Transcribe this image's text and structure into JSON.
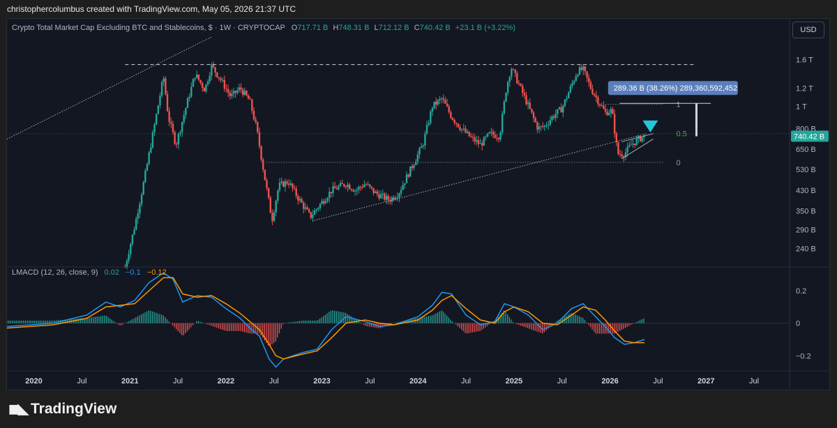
{
  "credit": "christophercolumbus created with TradingView.com, May 05, 2026 21:37 UTC",
  "brand": "TradingView",
  "currency_button": "USD",
  "legend": {
    "title": "Crypto Total Market Cap Excluding BTC and Stablecoins, $ · 1W · CRYPTOCAP",
    "open_label": "O",
    "open": "717.71 B",
    "high_label": "H",
    "high": "748.31 B",
    "low_label": "L",
    "low": "712.12 B",
    "close_label": "C",
    "close": "740.42 B",
    "change": "+23.1 B (+3.22%)"
  },
  "macd_legend": {
    "label": "LMACD (12, 26, close, 9)",
    "hist": "0.02",
    "macd": "−0.1",
    "signal": "−0.12"
  },
  "colors": {
    "up": "#26a69a",
    "down": "#ef5350",
    "macd": "#2196f3",
    "signal": "#ff9800",
    "fib_mid": "#4caf50",
    "bg": "#131722"
  },
  "chart_data": [
    {
      "type": "candlestick",
      "scale": "log",
      "title": "Crypto Total Market Cap Excluding BTC and Stablecoins, $ · 1W · CRYPTOCAP",
      "last_price_label": "740.42 B",
      "y_ticks": [
        "1.6 T",
        "1.2 T",
        "1 T",
        "800 B",
        "650 B",
        "530 B",
        "430 B",
        "350 B",
        "290 B",
        "240 B"
      ],
      "y_tick_values": [
        1600,
        1200,
        1000,
        800,
        650,
        530,
        430,
        350,
        290,
        240
      ],
      "ylim": [
        205,
        1950
      ],
      "x_ticks": [
        "2020",
        "Jul",
        "2021",
        "Jul",
        "2022",
        "Jul",
        "2023",
        "Jul",
        "2024",
        "Jul",
        "2025",
        "Jul",
        "2026",
        "Jul",
        "2027",
        "Jul"
      ],
      "x_tick_years": [
        2020.0,
        2020.5,
        2021.0,
        2021.5,
        2022.0,
        2022.5,
        2023.0,
        2023.5,
        2024.0,
        2024.5,
        2025.0,
        2025.5,
        2026.0,
        2026.5,
        2027.0,
        2027.5
      ],
      "xlim": [
        2019.72,
        2027.87
      ],
      "price_path": [
        [
          2020.95,
          200
        ],
        [
          2021.05,
          300
        ],
        [
          2021.15,
          480
        ],
        [
          2021.25,
          800
        ],
        [
          2021.35,
          1350
        ],
        [
          2021.4,
          900
        ],
        [
          2021.48,
          680
        ],
        [
          2021.6,
          1050
        ],
        [
          2021.68,
          1380
        ],
        [
          2021.78,
          1180
        ],
        [
          2021.85,
          1500
        ],
        [
          2021.95,
          1300
        ],
        [
          2022.05,
          1100
        ],
        [
          2022.15,
          1200
        ],
        [
          2022.25,
          1050
        ],
        [
          2022.32,
          800
        ],
        [
          2022.4,
          500
        ],
        [
          2022.48,
          320
        ],
        [
          2022.55,
          450
        ],
        [
          2022.65,
          470
        ],
        [
          2022.75,
          400
        ],
        [
          2022.88,
          330
        ],
        [
          2022.95,
          360
        ],
        [
          2023.1,
          430
        ],
        [
          2023.25,
          460
        ],
        [
          2023.35,
          430
        ],
        [
          2023.45,
          460
        ],
        [
          2023.55,
          420
        ],
        [
          2023.7,
          390
        ],
        [
          2023.8,
          420
        ],
        [
          2023.95,
          560
        ],
        [
          2024.05,
          680
        ],
        [
          2024.15,
          1000
        ],
        [
          2024.25,
          1080
        ],
        [
          2024.35,
          900
        ],
        [
          2024.45,
          800
        ],
        [
          2024.55,
          730
        ],
        [
          2024.65,
          680
        ],
        [
          2024.75,
          760
        ],
        [
          2024.85,
          740
        ],
        [
          2024.92,
          1200
        ],
        [
          2024.97,
          1480
        ],
        [
          2025.05,
          1250
        ],
        [
          2025.15,
          1000
        ],
        [
          2025.25,
          800
        ],
        [
          2025.32,
          820
        ],
        [
          2025.4,
          900
        ],
        [
          2025.5,
          980
        ],
        [
          2025.58,
          1180
        ],
        [
          2025.66,
          1420
        ],
        [
          2025.72,
          1450
        ],
        [
          2025.8,
          1200
        ],
        [
          2025.88,
          1050
        ],
        [
          2025.95,
          940
        ],
        [
          2026.02,
          960
        ],
        [
          2026.08,
          620
        ],
        [
          2026.15,
          620
        ],
        [
          2026.22,
          680
        ],
        [
          2026.3,
          720
        ],
        [
          2026.36,
          741
        ]
      ],
      "annotations": {
        "top_dashed_level": 1520,
        "fib_1_value": 1020,
        "fib_1_label": "1",
        "fib_05_value": 760,
        "fib_05_label": "0.5",
        "fib_0_value": 570,
        "fib_0_label": "0",
        "measure_label": "289.36 B (38.26%) 289,360,592,452",
        "measure_from": 740,
        "measure_to": 1030
      }
    },
    {
      "type": "line",
      "title": "LMACD (12, 26, close, 9)",
      "y_ticks": [
        "0.2",
        "0",
        "−0.2"
      ],
      "y_tick_values": [
        0.2,
        0,
        -0.2
      ],
      "ylim": [
        -0.28,
        0.32
      ],
      "series": [
        {
          "name": "LMACD",
          "color": "#2196f3",
          "points": [
            [
              2019.72,
              -0.02
            ],
            [
              2020.2,
              0.0
            ],
            [
              2020.55,
              0.05
            ],
            [
              2020.75,
              0.13
            ],
            [
              2020.9,
              0.1
            ],
            [
              2021.05,
              0.14
            ],
            [
              2021.2,
              0.25
            ],
            [
              2021.35,
              0.31
            ],
            [
              2021.45,
              0.27
            ],
            [
              2021.55,
              0.13
            ],
            [
              2021.7,
              0.17
            ],
            [
              2021.85,
              0.16
            ],
            [
              2022.0,
              0.09
            ],
            [
              2022.15,
              0.03
            ],
            [
              2022.25,
              -0.03
            ],
            [
              2022.35,
              -0.08
            ],
            [
              2022.45,
              -0.22
            ],
            [
              2022.52,
              -0.27
            ],
            [
              2022.6,
              -0.22
            ],
            [
              2022.8,
              -0.18
            ],
            [
              2022.95,
              -0.16
            ],
            [
              2023.1,
              -0.04
            ],
            [
              2023.25,
              0.04
            ],
            [
              2023.45,
              0.01
            ],
            [
              2023.6,
              -0.02
            ],
            [
              2023.75,
              -0.01
            ],
            [
              2024.0,
              0.04
            ],
            [
              2024.15,
              0.11
            ],
            [
              2024.25,
              0.19
            ],
            [
              2024.35,
              0.18
            ],
            [
              2024.5,
              0.05
            ],
            [
              2024.65,
              -0.01
            ],
            [
              2024.8,
              0.01
            ],
            [
              2024.9,
              0.12
            ],
            [
              2025.0,
              0.1
            ],
            [
              2025.15,
              0.05
            ],
            [
              2025.3,
              -0.04
            ],
            [
              2025.45,
              0.0
            ],
            [
              2025.6,
              0.09
            ],
            [
              2025.72,
              0.12
            ],
            [
              2025.85,
              0.04
            ],
            [
              2025.95,
              -0.02
            ],
            [
              2026.05,
              -0.09
            ],
            [
              2026.15,
              -0.13
            ],
            [
              2026.25,
              -0.12
            ],
            [
              2026.36,
              -0.1
            ]
          ]
        },
        {
          "name": "Signal",
          "color": "#ff9800",
          "points": [
            [
              2019.72,
              -0.03
            ],
            [
              2020.2,
              -0.01
            ],
            [
              2020.55,
              0.03
            ],
            [
              2020.75,
              0.1
            ],
            [
              2020.9,
              0.11
            ],
            [
              2021.05,
              0.12
            ],
            [
              2021.2,
              0.2
            ],
            [
              2021.35,
              0.28
            ],
            [
              2021.45,
              0.28
            ],
            [
              2021.55,
              0.18
            ],
            [
              2021.7,
              0.16
            ],
            [
              2021.85,
              0.17
            ],
            [
              2022.0,
              0.12
            ],
            [
              2022.15,
              0.06
            ],
            [
              2022.25,
              0.01
            ],
            [
              2022.35,
              -0.04
            ],
            [
              2022.45,
              -0.13
            ],
            [
              2022.52,
              -0.2
            ],
            [
              2022.6,
              -0.22
            ],
            [
              2022.8,
              -0.19
            ],
            [
              2022.95,
              -0.17
            ],
            [
              2023.1,
              -0.09
            ],
            [
              2023.25,
              0.0
            ],
            [
              2023.45,
              0.02
            ],
            [
              2023.6,
              0.0
            ],
            [
              2023.75,
              -0.01
            ],
            [
              2024.0,
              0.02
            ],
            [
              2024.15,
              0.08
            ],
            [
              2024.25,
              0.14
            ],
            [
              2024.35,
              0.17
            ],
            [
              2024.5,
              0.09
            ],
            [
              2024.65,
              0.02
            ],
            [
              2024.8,
              0.0
            ],
            [
              2024.9,
              0.07
            ],
            [
              2025.0,
              0.1
            ],
            [
              2025.15,
              0.07
            ],
            [
              2025.3,
              0.0
            ],
            [
              2025.45,
              -0.01
            ],
            [
              2025.6,
              0.05
            ],
            [
              2025.72,
              0.1
            ],
            [
              2025.85,
              0.08
            ],
            [
              2025.95,
              0.02
            ],
            [
              2026.05,
              -0.05
            ],
            [
              2026.15,
              -0.11
            ],
            [
              2026.25,
              -0.12
            ],
            [
              2026.36,
              -0.12
            ]
          ]
        }
      ]
    }
  ]
}
